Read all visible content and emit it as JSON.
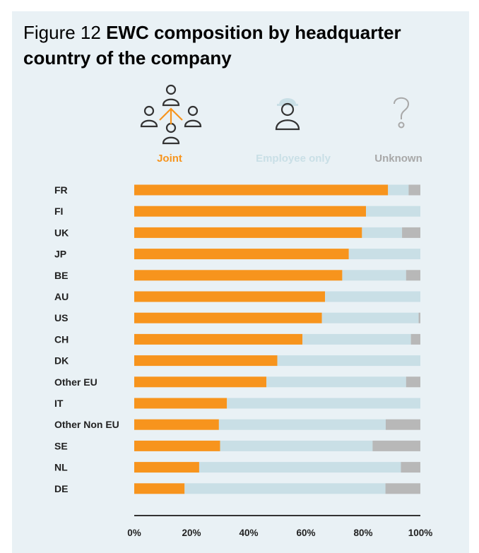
{
  "title": {
    "figure_label": "Figure 12",
    "main": "EWC composition by headquarter country of the company"
  },
  "legend": [
    {
      "label": "Joint",
      "color": "#f7941d",
      "icon": "people-network-icon"
    },
    {
      "label": "Employee only",
      "color": "#c9dfe6",
      "icon": "worker-hardhat-icon"
    },
    {
      "label": "Unknown",
      "color": "#b8b8b8",
      "icon": "question-mark-icon"
    }
  ],
  "colors": {
    "joint": "#f7941d",
    "employee": "#c9dfe6",
    "unknown": "#b8b8b8",
    "background": "#e9f1f5"
  },
  "chart_data": {
    "type": "bar",
    "orientation": "horizontal",
    "stacked": true,
    "categories": [
      "FR",
      "FI",
      "UK",
      "JP",
      "BE",
      "AU",
      "US",
      "CH",
      "DK",
      "Other EU",
      "IT",
      "Other Non EU",
      "SE",
      "NL",
      "DE"
    ],
    "series": [
      {
        "name": "Joint",
        "values": [
          88.7,
          81.0,
          79.6,
          75.0,
          72.7,
          66.7,
          65.6,
          58.8,
          50.0,
          46.2,
          32.4,
          29.6,
          30.0,
          22.7,
          17.6
        ]
      },
      {
        "name": "Employee only",
        "values": [
          7.2,
          19.0,
          14.0,
          25.0,
          22.3,
          33.3,
          33.8,
          37.9,
          50.0,
          48.8,
          67.6,
          58.3,
          53.3,
          70.5,
          70.2
        ]
      },
      {
        "name": "Unknown",
        "values": [
          4.1,
          0.0,
          6.4,
          0.0,
          5.0,
          0.0,
          0.6,
          3.3,
          0.0,
          5.0,
          0.0,
          12.1,
          16.7,
          6.8,
          12.2
        ]
      }
    ],
    "xlim": [
      0,
      100
    ],
    "xticks": [
      "0%",
      "20%",
      "40%",
      "60%",
      "80%",
      "100%"
    ],
    "grid": false
  }
}
